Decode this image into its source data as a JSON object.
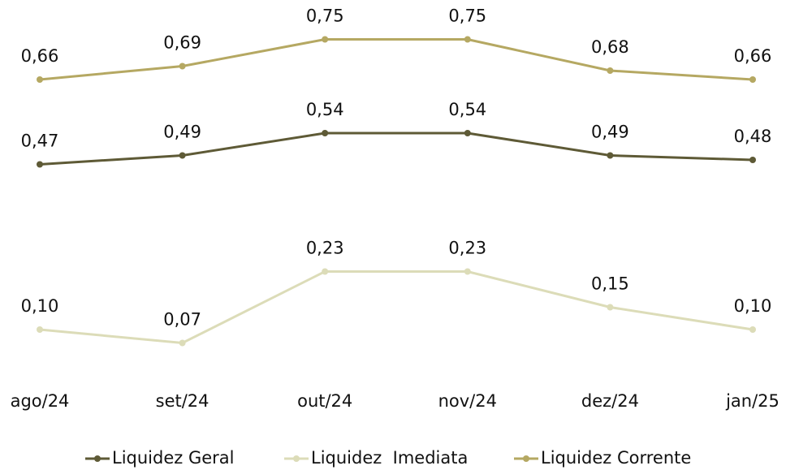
{
  "chart_data": {
    "type": "line",
    "categories": [
      "ago/24",
      "set/24",
      "out/24",
      "nov/24",
      "dez/24",
      "jan/25"
    ],
    "series": [
      {
        "name": "Liquidez Geral",
        "color": "#5e5a36",
        "values": [
          0.47,
          0.49,
          0.54,
          0.54,
          0.49,
          0.48
        ],
        "value_labels": [
          "0,47",
          "0,49",
          "0,54",
          "0,54",
          "0,49",
          "0,48"
        ]
      },
      {
        "name": "Liquidez  Imediata",
        "color": "#dcdcb8",
        "values": [
          0.1,
          0.07,
          0.23,
          0.23,
          0.15,
          0.1
        ],
        "value_labels": [
          "0,10",
          "0,07",
          "0,23",
          "0,23",
          "0,15",
          "0,10"
        ]
      },
      {
        "name": "Liquidez Corrente",
        "color": "#b5a862",
        "values": [
          0.66,
          0.69,
          0.75,
          0.75,
          0.68,
          0.66
        ],
        "value_labels": [
          "0,66",
          "0,69",
          "0,75",
          "0,75",
          "0,68",
          "0,66"
        ]
      }
    ],
    "ylim": [
      0,
      0.8
    ],
    "legend": "bottom"
  }
}
